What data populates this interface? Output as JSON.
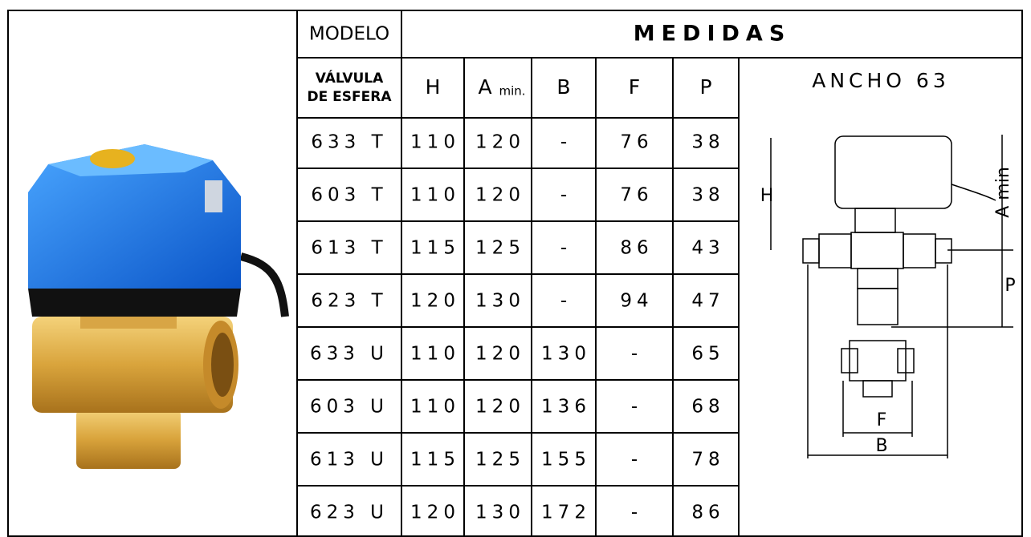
{
  "header": {
    "model": "MODELO",
    "title": "MEDIDAS"
  },
  "subheader": {
    "valve_line1": "VÁLVULA",
    "valve_line2": "DE ESFERA",
    "h": "H",
    "a": "A",
    "a_min": "min.",
    "b": "B",
    "f": "F",
    "p": "P"
  },
  "rows": [
    [
      "633 T",
      "110",
      "120",
      "-",
      "76",
      "38"
    ],
    [
      "603 T",
      "110",
      "120",
      "-",
      "76",
      "38"
    ],
    [
      "613 T",
      "115",
      "125",
      "-",
      "86",
      "43"
    ],
    [
      "623 T",
      "120",
      "130",
      "-",
      "94",
      "47"
    ],
    [
      "633 U",
      "110",
      "120",
      "130",
      "-",
      "65"
    ],
    [
      "603 U",
      "110",
      "120",
      "136",
      "-",
      "68"
    ],
    [
      "613 U",
      "115",
      "125",
      "155",
      "-",
      "78"
    ],
    [
      "623 U",
      "120",
      "130",
      "172",
      "-",
      "86"
    ]
  ],
  "drawing": {
    "title": "ANCHO 63",
    "h": "H",
    "a_min": "A min",
    "p": "P",
    "f": "F",
    "b": "B"
  }
}
